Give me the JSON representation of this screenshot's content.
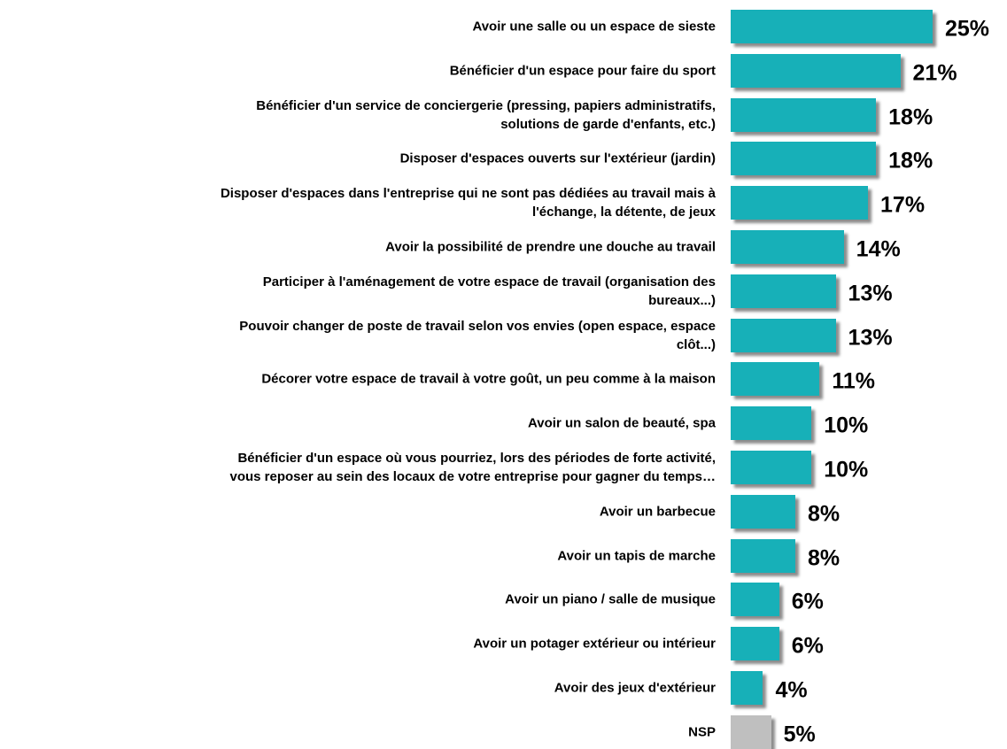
{
  "chart_data": {
    "type": "hbar",
    "categories": [
      "Avoir une salle ou un espace de sieste",
      "Bénéficier d'un espace pour faire du sport",
      "Bénéficier d'un service de conciergerie (pressing, papiers administratifs,\nsolutions de garde d'enfants, etc.)",
      "Disposer d'espaces ouverts sur l'extérieur (jardin)",
      "Disposer d'espaces dans l'entreprise qui ne sont pas dédiées au travail mais à\nl'échange, la détente, de jeux",
      "Avoir la possibilité de prendre une douche au travail",
      "Participer à l'aménagement de votre espace de travail (organisation des\nbureaux...)",
      "Pouvoir changer de poste de travail selon vos envies (open espace, espace\nclôt...)",
      "Décorer votre espace de travail à votre goût, un peu comme à la maison",
      "Avoir un salon de beauté, spa",
      "Bénéficier d'un espace où vous pourriez, lors des périodes de forte activité,\nvous reposer au sein des locaux de votre entreprise pour gagner du temps…",
      "Avoir un barbecue",
      "Avoir un tapis de marche",
      "Avoir un piano / salle de musique",
      "Avoir un potager extérieur ou intérieur",
      "Avoir des jeux d'extérieur",
      "NSP"
    ],
    "values": [
      25,
      21,
      18,
      18,
      17,
      14,
      13,
      13,
      11,
      10,
      10,
      8,
      8,
      6,
      6,
      4,
      5
    ],
    "value_labels": [
      "25%",
      "21%",
      "18%",
      "18%",
      "17%",
      "14%",
      "13%",
      "13%",
      "11%",
      "10%",
      "10%",
      "8%",
      "8%",
      "6%",
      "6%",
      "4%",
      "5%"
    ],
    "colors": [
      "#17b0b8",
      "#17b0b8",
      "#17b0b8",
      "#17b0b8",
      "#17b0b8",
      "#17b0b8",
      "#17b0b8",
      "#17b0b8",
      "#17b0b8",
      "#17b0b8",
      "#17b0b8",
      "#17b0b8",
      "#17b0b8",
      "#17b0b8",
      "#17b0b8",
      "#17b0b8",
      "#bfbfbf"
    ]
  }
}
